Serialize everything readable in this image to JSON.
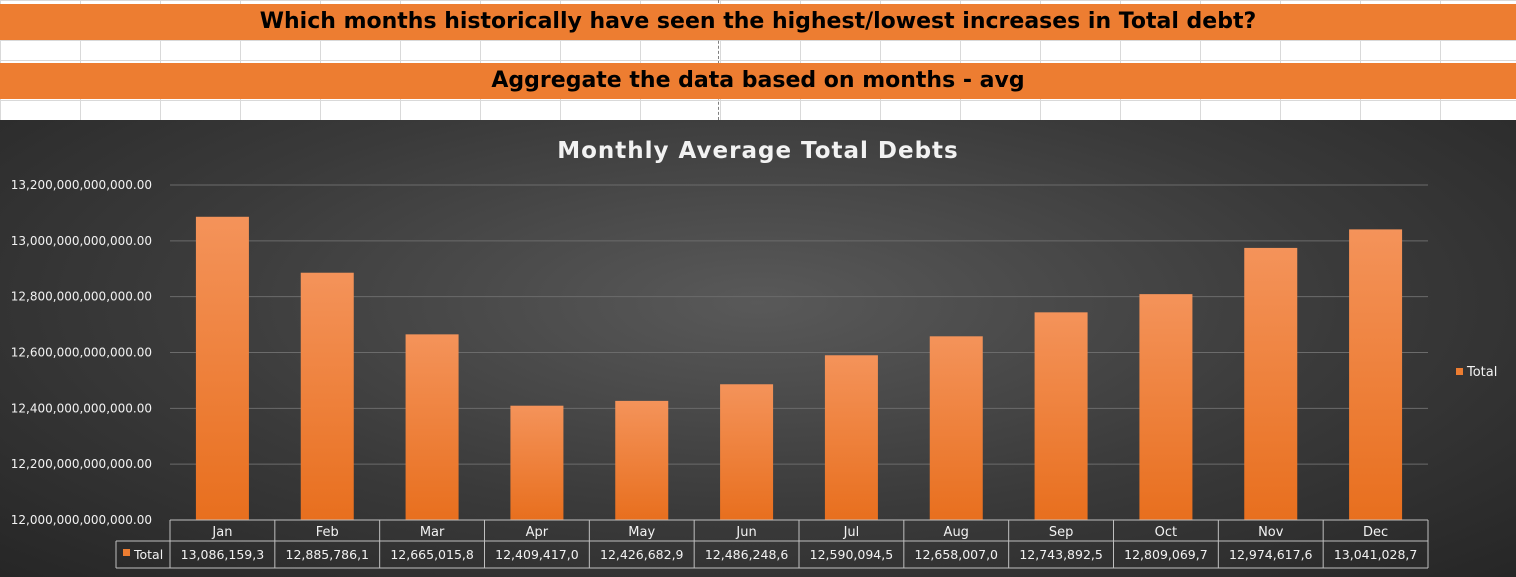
{
  "banners": {
    "question": "Which months historically have seen the highest/lowest increases in Total debt?",
    "method": "Aggregate the data based on months - avg"
  },
  "colors": {
    "bar": "#ed7d31",
    "bar_light": "#f4a06a",
    "banner": "#ed7d31"
  },
  "chart_data": {
    "type": "bar",
    "title": "Monthly Average Total Debts",
    "categories": [
      "Jan",
      "Feb",
      "Mar",
      "Apr",
      "May",
      "Jun",
      "Jul",
      "Aug",
      "Sep",
      "Oct",
      "Nov",
      "Dec"
    ],
    "series": [
      {
        "name": "Total",
        "values": [
          13086159300000,
          12885786100000,
          12665015800000,
          12409417000000,
          12426682900000,
          12486248600000,
          12590094500000,
          12658007000000,
          12743892500000,
          12809069700000,
          12974617600000,
          13041028700000
        ]
      }
    ],
    "table_values": [
      "13,086,159,3",
      "12,885,786,1",
      "12,665,015,8",
      "12,409,417,0",
      "12,426,682,9",
      "12,486,248,6",
      "12,590,094,5",
      "12,658,007,0",
      "12,743,892,5",
      "12,809,069,7",
      "12,974,617,6",
      "13,041,028,7"
    ],
    "yticks": [
      "12,000,000,000,000.00",
      "12,200,000,000,000.00",
      "12,400,000,000,000.00",
      "12,600,000,000,000.00",
      "12,800,000,000,000.00",
      "13,000,000,000,000.00",
      "13,200,000,000,000.00"
    ],
    "ylim": [
      12000000000000,
      13200000000000
    ],
    "legend_position": "right",
    "grid": true
  }
}
